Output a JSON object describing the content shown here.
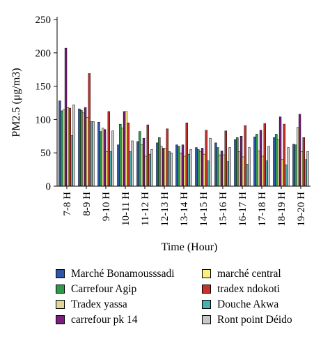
{
  "chart_data": {
    "type": "bar",
    "xlabel": "Time (Hour)",
    "ylabel": "PM2.5 (μg/m3)",
    "ylim": [
      0,
      250
    ],
    "yticks": [
      0,
      50,
      100,
      150,
      200,
      250
    ],
    "categories": [
      "7-8 H",
      "8-9 H",
      "9-10 H",
      "10-11 H",
      "11-12 H",
      "12-13 H",
      "13-14 H",
      "14-15 H",
      "15-16 H",
      "16-17 H",
      "17-18 H",
      "18-19 H",
      "19-20 H"
    ],
    "series": [
      {
        "name": "Marché Bonamousssadi",
        "color": "#2f56a6",
        "values": [
          128,
          116,
          96,
          62,
          67,
          65,
          62,
          58,
          65,
          70,
          74,
          73,
          63
        ]
      },
      {
        "name": "Carrefour Agip",
        "color": "#2e9a4a",
        "values": [
          113,
          114,
          82,
          93,
          82,
          73,
          60,
          55,
          58,
          73,
          78,
          78,
          62
        ]
      },
      {
        "name": "Tradex yassa",
        "color": "#ddd6a0",
        "values": [
          115,
          110,
          87,
          87,
          62,
          60,
          50,
          52,
          47,
          52,
          53,
          70,
          88
        ]
      },
      {
        "name": "carrefour pk 14",
        "color": "#7b1f7e",
        "values": [
          207,
          118,
          85,
          112,
          72,
          57,
          62,
          57,
          53,
          75,
          84,
          104,
          108
        ]
      },
      {
        "name": "marché central",
        "color": "#fdf07a",
        "values": [
          118,
          103,
          52,
          112,
          45,
          57,
          45,
          48,
          47,
          44,
          45,
          40,
          52
        ]
      },
      {
        "name": "tradex ndokoti",
        "color": "#c8322c",
        "values": [
          117,
          169,
          112,
          95,
          92,
          86,
          95,
          84,
          83,
          91,
          94,
          93,
          73
        ]
      },
      {
        "name": "Douche Akwa",
        "color": "#48b1ad",
        "values": [
          76,
          97,
          52,
          52,
          48,
          52,
          48,
          38,
          37,
          33,
          38,
          32,
          40
        ]
      },
      {
        "name": "Ront point Déido",
        "color": "#c8c8c8",
        "values": [
          122,
          97,
          83,
          68,
          55,
          50,
          55,
          72,
          58,
          58,
          60,
          58,
          52
        ]
      }
    ]
  }
}
